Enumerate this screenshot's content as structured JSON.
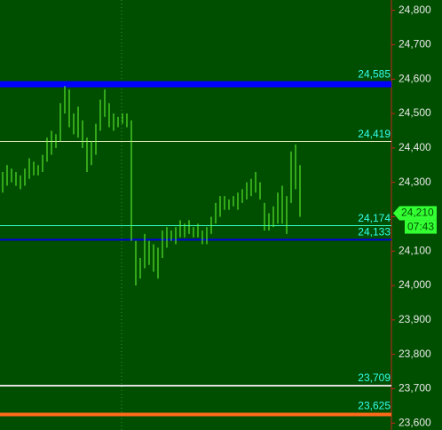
{
  "chart_data": {
    "type": "ohlc",
    "categories": [
      null,
      null,
      null,
      null,
      null,
      null,
      null,
      null,
      null,
      null,
      null,
      null,
      null,
      null,
      null,
      null,
      null,
      null,
      null,
      null,
      null,
      null,
      null,
      null,
      null,
      null,
      null,
      null,
      null,
      null,
      null,
      null,
      null,
      null,
      null,
      null,
      null,
      null,
      null,
      null,
      null,
      null,
      null,
      null,
      null,
      null,
      null,
      null,
      null,
      null,
      null,
      null,
      null,
      null,
      null,
      null,
      null,
      null,
      null,
      null,
      null,
      null,
      null,
      null,
      null,
      null,
      null,
      null
    ],
    "color": "#66ff33",
    "high": [
      24330,
      24350,
      24340,
      24330,
      24320,
      24340,
      24370,
      24360,
      24350,
      24380,
      24430,
      24450,
      24440,
      24530,
      24580,
      24570,
      24500,
      24520,
      24480,
      24430,
      24420,
      24470,
      24540,
      24570,
      24530,
      24500,
      24490,
      24500,
      24500,
      24480,
      24130,
      24080,
      24150,
      24130,
      24120,
      24110,
      24160,
      24170,
      24160,
      24170,
      24190,
      24180,
      24190,
      24170,
      24180,
      24160,
      24170,
      24200,
      24240,
      24260,
      24260,
      24250,
      24260,
      24270,
      24280,
      24300,
      24310,
      24330,
      24300,
      24240,
      24210,
      24230,
      24270,
      24290,
      24260,
      24390,
      24410,
      24350
    ],
    "low": [
      24270,
      24290,
      24300,
      24290,
      24280,
      24290,
      24310,
      24320,
      24320,
      24330,
      24360,
      24380,
      24400,
      24420,
      24500,
      24460,
      24440,
      24430,
      24400,
      24330,
      24350,
      24380,
      24450,
      24490,
      24460,
      24450,
      24460,
      24470,
      24460,
      24130,
      24000,
      24020,
      24050,
      24060,
      24040,
      24020,
      24080,
      24110,
      24130,
      24120,
      24140,
      24140,
      24150,
      24140,
      24140,
      24120,
      24120,
      24150,
      24180,
      24200,
      24220,
      24220,
      24230,
      24220,
      24240,
      24250,
      24260,
      24270,
      24250,
      24160,
      24160,
      24170,
      24180,
      24180,
      24150,
      24240,
      24280,
      24200
    ],
    "ylim": [
      23580,
      24830
    ],
    "yticks": [
      {
        "value": 24800,
        "label": "24,800"
      },
      {
        "value": 24700,
        "label": "24,700"
      },
      {
        "value": 24600,
        "label": "24,600"
      },
      {
        "value": 24500,
        "label": "24,500"
      },
      {
        "value": 24400,
        "label": "24,400"
      },
      {
        "value": 24300,
        "label": "24,300"
      },
      {
        "value": 24200,
        "label": "24,200"
      },
      {
        "value": 24100,
        "label": "24,100"
      },
      {
        "value": 24000,
        "label": "24,000"
      },
      {
        "value": 23900,
        "label": "23,900"
      },
      {
        "value": 23800,
        "label": "23,800"
      },
      {
        "value": 23700,
        "label": "23,700"
      },
      {
        "value": 23600,
        "label": "23,600"
      }
    ],
    "levels": {
      "values": [
        24585,
        24419,
        24174,
        24133,
        23709,
        23625
      ],
      "value_labels": [
        "24,585",
        "24,419",
        "24,174",
        "24,133",
        "23,709",
        "23,625"
      ],
      "colors": [
        "#0000ff",
        "#f0f0c8",
        "#33ffcc",
        "#0000dd",
        "#e0e0e0",
        "#ff6a1a"
      ]
    },
    "last_price": {
      "value": 24210,
      "label": "24,210",
      "color": "#33ff33"
    },
    "timer": "07:43"
  }
}
